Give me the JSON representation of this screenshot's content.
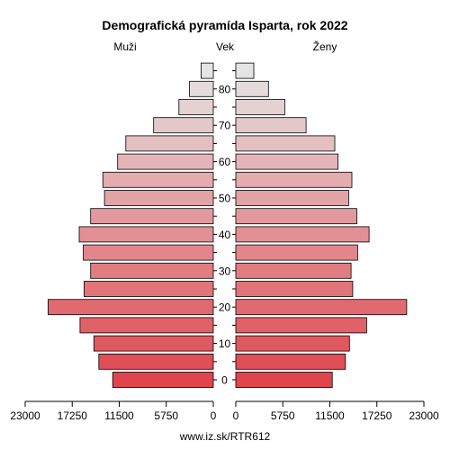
{
  "chart_data": {
    "type": "bar",
    "title": "Demografická pyramída Isparta, rok 2022",
    "left_label": "Muži",
    "center_label": "Vek",
    "right_label": "Ženy",
    "source": "www.iz.sk/RTR612",
    "age_groups": [
      "0-4",
      "5-9",
      "10-14",
      "15-19",
      "20-24",
      "25-29",
      "30-34",
      "35-39",
      "40-44",
      "45-49",
      "50-54",
      "55-59",
      "60-64",
      "65-69",
      "70-74",
      "75-79",
      "80-84",
      "85+"
    ],
    "age_tick_labels": [
      "0",
      "10",
      "20",
      "30",
      "40",
      "50",
      "60",
      "70",
      "80"
    ],
    "series": [
      {
        "name": "Muži",
        "values": [
          12300,
          14000,
          14600,
          16300,
          20200,
          15800,
          15000,
          15900,
          16400,
          15000,
          13300,
          13500,
          11700,
          10700,
          7300,
          4200,
          2900,
          1500
        ]
      },
      {
        "name": "Ženy",
        "values": [
          11800,
          13400,
          13900,
          16000,
          20900,
          14300,
          14100,
          14900,
          16300,
          14800,
          13800,
          14200,
          12500,
          12100,
          8600,
          6000,
          4000,
          2200
        ]
      }
    ],
    "x_tick_labels_left": [
      "23000",
      "17250",
      "11500",
      "5750",
      "0"
    ],
    "x_tick_labels_right": [
      "0",
      "5750",
      "11500",
      "17250",
      "23000"
    ],
    "xlim": [
      0,
      23000
    ],
    "colors": {
      "bottom": "#e0454d",
      "top": "#e4e4e4",
      "stroke": "#000000"
    }
  }
}
